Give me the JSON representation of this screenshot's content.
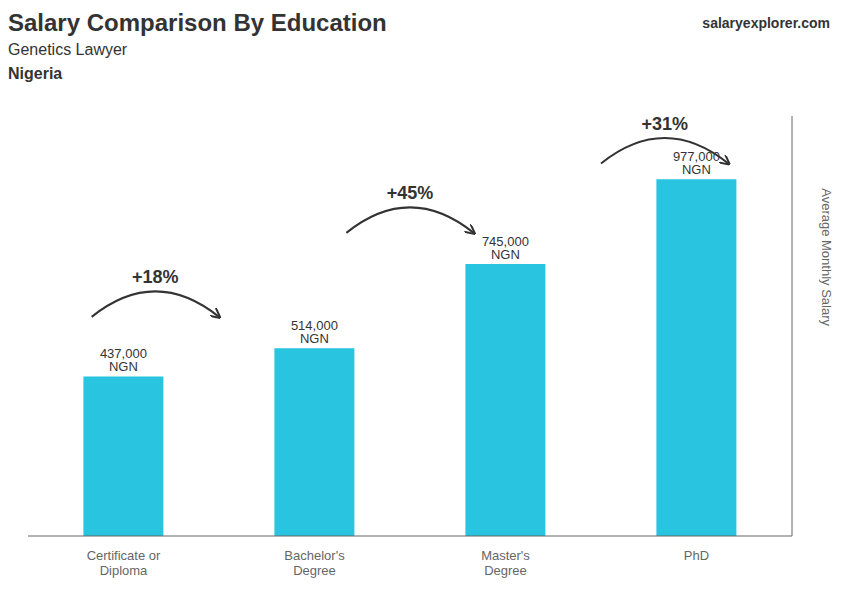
{
  "chart_data": {
    "type": "bar",
    "title": "Salary Comparison By Education",
    "subtitle": "Genetics Lawyer",
    "country": "Nigeria",
    "watermark": "salaryexplorer.com",
    "ylabel": "Average Monthly Salary",
    "categories": [
      "Certificate or\nDiploma",
      "Bachelor's\nDegree",
      "Master's\nDegree",
      "PhD"
    ],
    "values": [
      437000,
      514000,
      745000,
      977000
    ],
    "value_labels": [
      "437,000 NGN",
      "514,000 NGN",
      "745,000 NGN",
      "977,000 NGN"
    ],
    "data_labels": true,
    "color": "#29c4e0",
    "ylim": [
      0,
      1150000
    ],
    "tick_labels": "x",
    "annotations": [
      {
        "text": "+18%",
        "y": 600000
      },
      {
        "text": "+45%",
        "y": 830000
      },
      {
        "text": "+31%",
        "y": 1020000
      }
    ]
  }
}
